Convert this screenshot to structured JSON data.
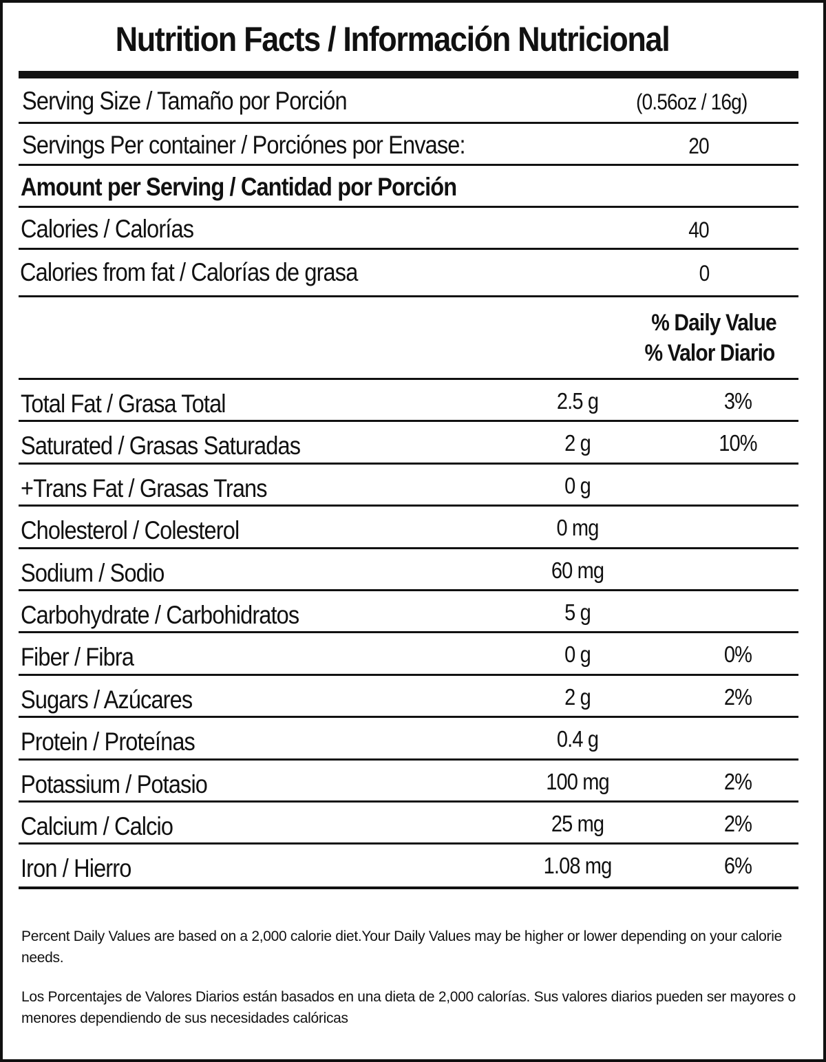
{
  "title": "Nutrition Facts / Información Nutricional",
  "serving_size": {
    "label": "Serving Size / Tamaño por Porción",
    "value": "(0.56oz / 16g)"
  },
  "servings_per_container": {
    "label": "Servings Per container / Porciónes por Envase:",
    "value": "20"
  },
  "amount_per_serving": "Amount per Serving / Cantidad por Porción",
  "calories": {
    "label": "Calories / Calorías",
    "value": "40"
  },
  "calories_from_fat": {
    "label": "Calories from fat / Calorías de grasa",
    "value": "0"
  },
  "daily_value_header": {
    "line1": "% Daily Value",
    "line2": "% Valor Diario"
  },
  "nutrients": [
    {
      "label": "Total Fat / Grasa Total",
      "amount": "2.5 g",
      "dv": "3%"
    },
    {
      "label": "Saturated / Grasas Saturadas",
      "amount": "2 g",
      "dv": "10%"
    },
    {
      "label": "+Trans Fat / Grasas Trans",
      "amount": "0 g",
      "dv": ""
    },
    {
      "label": "Cholesterol / Colesterol",
      "amount": "0 mg",
      "dv": ""
    },
    {
      "label": "Sodium / Sodio",
      "amount": "60 mg",
      "dv": ""
    },
    {
      "label": "Carbohydrate / Carbohidratos",
      "amount": "5 g",
      "dv": ""
    },
    {
      "label": "Fiber / Fibra",
      "amount": "0 g",
      "dv": "0%"
    },
    {
      "label": "Sugars / Azúcares",
      "amount": "2 g",
      "dv": "2%"
    },
    {
      "label": "Protein / Proteínas",
      "amount": "0.4 g",
      "dv": ""
    },
    {
      "label": "Potassium / Potasio",
      "amount": "100 mg",
      "dv": "2%"
    },
    {
      "label": "Calcium / Calcio",
      "amount": "25 mg",
      "dv": "2%"
    },
    {
      "label": "Iron / Hierro",
      "amount": "1.08 mg",
      "dv": "6%"
    }
  ],
  "footnotes": {
    "english": "Percent Daily Values are based on a 2,000 calorie diet.Your Daily Values may be higher or lower depending on your calorie needs.",
    "spanish": "Los Porcentajes de Valores Diarios están basados en una dieta de 2,000 calorías. Sus valores diarios pueden ser mayores o menores dependiendo de sus necesidades calóricas"
  }
}
